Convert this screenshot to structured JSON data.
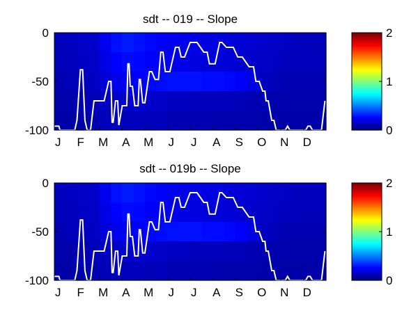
{
  "chart_data": [
    {
      "type": "heatmap",
      "title": "sdt -- 019 -- Slope",
      "xlabel": "",
      "ylabel": "",
      "x_tick_labels": [
        "J",
        "F",
        "M",
        "A",
        "M",
        "J",
        "J",
        "A",
        "S",
        "O",
        "N",
        "D"
      ],
      "y_tick_labels": [
        "0",
        "-50",
        "-100"
      ],
      "ylim": [
        -100,
        0
      ],
      "colormap": "jet",
      "colorbar": {
        "range": [
          0,
          2
        ],
        "tick_labels": [
          "0",
          "1",
          "2"
        ]
      },
      "heatmap_description_values": {
        "x_months": [
          1,
          1.5,
          2,
          2.5,
          3,
          3.5,
          4,
          4.5,
          5,
          5.5,
          6,
          6.5,
          7,
          7.5,
          8,
          8.5,
          9,
          9.5,
          10,
          10.5,
          11,
          11.5,
          12,
          12.5
        ],
        "depth_bands": [
          [
            0,
            -20
          ],
          [
            -20,
            -40
          ],
          [
            -40,
            -60
          ],
          [
            -60,
            -80
          ],
          [
            -80,
            -100
          ]
        ],
        "values": [
          [
            0.12,
            0.13,
            0.14,
            0.15,
            0.22,
            0.28,
            0.3,
            0.28,
            0.26,
            0.24,
            0.22,
            0.21,
            0.2,
            0.19,
            0.19,
            0.18,
            0.17,
            0.16,
            0.15,
            0.14,
            0.13,
            0.12,
            0.12,
            0.12
          ],
          [
            0.11,
            0.12,
            0.13,
            0.14,
            0.2,
            0.25,
            0.27,
            0.26,
            0.24,
            0.23,
            0.21,
            0.2,
            0.19,
            0.18,
            0.18,
            0.17,
            0.16,
            0.15,
            0.14,
            0.13,
            0.12,
            0.11,
            0.11,
            0.11
          ],
          [
            0.1,
            0.11,
            0.12,
            0.13,
            0.17,
            0.21,
            0.22,
            0.24,
            0.26,
            0.27,
            0.28,
            0.28,
            0.28,
            0.27,
            0.27,
            0.26,
            0.24,
            0.2,
            0.13,
            0.11,
            0.1,
            0.1,
            0.1,
            0.1
          ],
          [
            0.09,
            0.09,
            0.1,
            0.11,
            0.13,
            0.15,
            0.16,
            0.16,
            0.15,
            0.14,
            0.13,
            0.13,
            0.12,
            0.12,
            0.12,
            0.11,
            0.11,
            0.1,
            0.1,
            0.09,
            0.09,
            0.09,
            0.09,
            0.09
          ],
          [
            0.08,
            0.08,
            0.09,
            0.1,
            0.11,
            0.12,
            0.12,
            0.12,
            0.11,
            0.11,
            0.1,
            0.1,
            0.1,
            0.1,
            0.09,
            0.09,
            0.09,
            0.09,
            0.08,
            0.08,
            0.08,
            0.08,
            0.08,
            0.08
          ]
        ]
      },
      "line": {
        "color": "#ffffff",
        "x": [
          1.0,
          1.2,
          1.25,
          1.9,
          2.0,
          2.15,
          2.25,
          2.35,
          2.45,
          2.6,
          2.75,
          2.85,
          3.0,
          3.2,
          3.4,
          3.5,
          3.55,
          3.6,
          3.7,
          3.8,
          3.85,
          4.0,
          4.2,
          4.25,
          4.3,
          4.35,
          4.45,
          4.55,
          4.7,
          4.75,
          4.8,
          4.9,
          5.0,
          5.2,
          5.3,
          5.45,
          5.6,
          5.7,
          5.8,
          5.9,
          6.1,
          6.35,
          6.5,
          6.6,
          6.75,
          7.0,
          7.3,
          7.6,
          7.75,
          7.85,
          8.1,
          8.3,
          8.35,
          8.4,
          8.6,
          8.9,
          9.1,
          9.3,
          9.6,
          9.8,
          9.9,
          10.05,
          10.2,
          10.3,
          10.35,
          10.45,
          10.6,
          10.7,
          10.8,
          11.0,
          11.2,
          11.3,
          11.4,
          11.7,
          12.1,
          12.2,
          12.3,
          12.4,
          12.6,
          12.8,
          12.95
        ],
        "y": [
          -96,
          -96,
          -100,
          -100,
          -90,
          -38,
          -38,
          -90,
          -100,
          -100,
          -70,
          -70,
          -70,
          -70,
          -50,
          -50,
          -92,
          -92,
          -70,
          -70,
          -95,
          -75,
          -75,
          -32,
          -32,
          -55,
          -55,
          -75,
          -75,
          -48,
          -48,
          -72,
          -72,
          -40,
          -40,
          -48,
          -48,
          -20,
          -20,
          -40,
          -40,
          -15,
          -15,
          -25,
          -25,
          -10,
          -10,
          -20,
          -20,
          -32,
          -32,
          -10,
          -10,
          -10,
          -15,
          -15,
          -25,
          -25,
          -35,
          -35,
          -50,
          -50,
          -60,
          -60,
          -70,
          -70,
          -90,
          -90,
          -100,
          -100,
          -100,
          -96,
          -100,
          -100,
          -100,
          -96,
          -96,
          -100,
          -100,
          -100,
          -70
        ]
      }
    },
    {
      "type": "heatmap",
      "title": "sdt -- 019b -- Slope",
      "xlabel": "",
      "ylabel": "",
      "x_tick_labels": [
        "J",
        "F",
        "M",
        "A",
        "M",
        "J",
        "J",
        "A",
        "S",
        "O",
        "N",
        "D"
      ],
      "y_tick_labels": [
        "0",
        "-50",
        "-100"
      ],
      "ylim": [
        -100,
        0
      ],
      "colormap": "jet",
      "colorbar": {
        "range": [
          0,
          2
        ],
        "tick_labels": [
          "0",
          "1",
          "2"
        ]
      },
      "heatmap_description_values": {
        "x_months": [
          1,
          1.5,
          2,
          2.5,
          3,
          3.5,
          4,
          4.5,
          5,
          5.5,
          6,
          6.5,
          7,
          7.5,
          8,
          8.5,
          9,
          9.5,
          10,
          10.5,
          11,
          11.5,
          12,
          12.5
        ],
        "depth_bands": [
          [
            0,
            -20
          ],
          [
            -20,
            -40
          ],
          [
            -40,
            -60
          ],
          [
            -60,
            -80
          ],
          [
            -80,
            -100
          ]
        ],
        "values": [
          [
            0.12,
            0.13,
            0.14,
            0.15,
            0.22,
            0.28,
            0.3,
            0.28,
            0.26,
            0.24,
            0.22,
            0.21,
            0.2,
            0.19,
            0.19,
            0.18,
            0.17,
            0.16,
            0.15,
            0.14,
            0.13,
            0.12,
            0.12,
            0.12
          ],
          [
            0.11,
            0.12,
            0.13,
            0.14,
            0.2,
            0.25,
            0.27,
            0.26,
            0.24,
            0.23,
            0.21,
            0.2,
            0.19,
            0.18,
            0.18,
            0.17,
            0.16,
            0.15,
            0.14,
            0.13,
            0.12,
            0.11,
            0.11,
            0.11
          ],
          [
            0.1,
            0.11,
            0.12,
            0.13,
            0.17,
            0.21,
            0.22,
            0.24,
            0.26,
            0.27,
            0.28,
            0.28,
            0.28,
            0.27,
            0.27,
            0.26,
            0.24,
            0.2,
            0.13,
            0.11,
            0.1,
            0.1,
            0.1,
            0.1
          ],
          [
            0.09,
            0.09,
            0.1,
            0.11,
            0.13,
            0.15,
            0.16,
            0.16,
            0.15,
            0.14,
            0.13,
            0.13,
            0.12,
            0.12,
            0.12,
            0.11,
            0.11,
            0.1,
            0.1,
            0.09,
            0.09,
            0.09,
            0.09,
            0.09
          ],
          [
            0.08,
            0.08,
            0.09,
            0.1,
            0.11,
            0.12,
            0.12,
            0.12,
            0.11,
            0.11,
            0.1,
            0.1,
            0.1,
            0.1,
            0.09,
            0.09,
            0.09,
            0.09,
            0.08,
            0.08,
            0.08,
            0.08,
            0.08,
            0.08
          ]
        ]
      },
      "line": {
        "color": "#ffffff",
        "x": [
          1.0,
          1.2,
          1.25,
          1.9,
          2.0,
          2.15,
          2.25,
          2.35,
          2.45,
          2.6,
          2.75,
          2.85,
          3.0,
          3.2,
          3.4,
          3.5,
          3.55,
          3.6,
          3.7,
          3.8,
          3.85,
          4.0,
          4.2,
          4.25,
          4.3,
          4.35,
          4.45,
          4.55,
          4.7,
          4.75,
          4.8,
          4.9,
          5.0,
          5.2,
          5.3,
          5.45,
          5.6,
          5.7,
          5.8,
          5.9,
          6.1,
          6.35,
          6.5,
          6.6,
          6.75,
          7.0,
          7.3,
          7.6,
          7.75,
          7.85,
          8.1,
          8.3,
          8.35,
          8.4,
          8.6,
          8.9,
          9.1,
          9.3,
          9.6,
          9.8,
          9.9,
          10.05,
          10.2,
          10.3,
          10.35,
          10.45,
          10.6,
          10.7,
          10.8,
          11.0,
          11.2,
          11.3,
          11.4,
          11.7,
          12.1,
          12.2,
          12.3,
          12.4,
          12.6,
          12.8,
          12.95
        ],
        "y": [
          -96,
          -96,
          -100,
          -100,
          -90,
          -38,
          -38,
          -90,
          -100,
          -100,
          -70,
          -70,
          -70,
          -70,
          -50,
          -50,
          -92,
          -92,
          -70,
          -70,
          -95,
          -75,
          -75,
          -32,
          -32,
          -55,
          -55,
          -75,
          -75,
          -48,
          -48,
          -72,
          -72,
          -40,
          -40,
          -48,
          -48,
          -20,
          -20,
          -40,
          -40,
          -15,
          -15,
          -25,
          -25,
          -10,
          -10,
          -20,
          -20,
          -32,
          -32,
          -10,
          -10,
          -10,
          -15,
          -15,
          -25,
          -25,
          -35,
          -35,
          -50,
          -50,
          -60,
          -60,
          -70,
          -70,
          -90,
          -90,
          -100,
          -100,
          -100,
          -96,
          -100,
          -100,
          -100,
          -96,
          -96,
          -100,
          -100,
          -100,
          -70
        ]
      }
    }
  ]
}
